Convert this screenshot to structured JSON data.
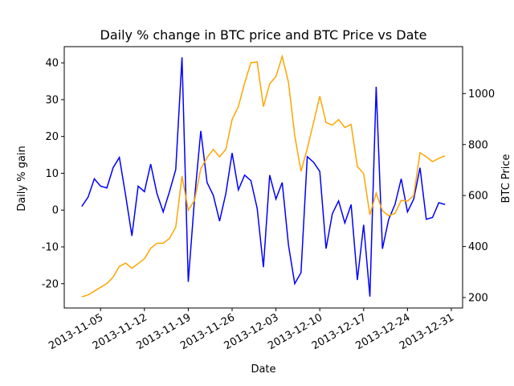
{
  "chart_data": {
    "type": "line",
    "title": "Daily % change in BTC price and BTC Price vs Date",
    "xlabel": "Date",
    "ylabel": "Daily % gain",
    "y2label": "BTC Price",
    "x": [
      "2013-11-02",
      "2013-11-03",
      "2013-11-04",
      "2013-11-05",
      "2013-11-06",
      "2013-11-07",
      "2013-11-08",
      "2013-11-09",
      "2013-11-10",
      "2013-11-11",
      "2013-11-12",
      "2013-11-13",
      "2013-11-14",
      "2013-11-15",
      "2013-11-16",
      "2013-11-17",
      "2013-11-18",
      "2013-11-19",
      "2013-11-20",
      "2013-11-21",
      "2013-11-22",
      "2013-11-23",
      "2013-11-24",
      "2013-11-25",
      "2013-11-26",
      "2013-11-27",
      "2013-11-28",
      "2013-11-29",
      "2013-11-30",
      "2013-12-01",
      "2013-12-02",
      "2013-12-03",
      "2013-12-04",
      "2013-12-05",
      "2013-12-06",
      "2013-12-07",
      "2013-12-08",
      "2013-12-09",
      "2013-12-10",
      "2013-12-11",
      "2013-12-12",
      "2013-12-13",
      "2013-12-14",
      "2013-12-15",
      "2013-12-16",
      "2013-12-17",
      "2013-12-18",
      "2013-12-19",
      "2013-12-20",
      "2013-12-21",
      "2013-12-22",
      "2013-12-23",
      "2013-12-24",
      "2013-12-25",
      "2013-12-26",
      "2013-12-27",
      "2013-12-28",
      "2013-12-29",
      "2013-12-30"
    ],
    "series": [
      {
        "color": "#0000ff",
        "axis": "y",
        "values": [
          1,
          3.5,
          8.5,
          6.5,
          6,
          11.5,
          14.3,
          4,
          -7,
          6.5,
          5,
          12.5,
          4.5,
          -0.5,
          5,
          11,
          41.5,
          -19.5,
          3,
          21.5,
          7.5,
          4,
          -3,
          4.5,
          15.5,
          5.5,
          9.5,
          8,
          0.5,
          -15.5,
          9.5,
          3,
          7.5,
          -9.5,
          -20,
          -17,
          14.5,
          13,
          10.5,
          -10.5,
          -1,
          2.5,
          -3.5,
          1.5,
          -19,
          -4,
          -23.5,
          33.5,
          -10.5,
          -2.5,
          1.5,
          8.5,
          -0.5,
          3,
          11.5,
          -2.5,
          -2,
          2,
          1.5
        ]
      },
      {
        "color": "#ffa500",
        "axis": "y2",
        "values": [
          203,
          210,
          225,
          240,
          255,
          280,
          322,
          335,
          315,
          333,
          352,
          393,
          413,
          413,
          432,
          476,
          676,
          543,
          581,
          705,
          749,
          781,
          752,
          781,
          898,
          949,
          1041,
          1121,
          1124,
          949,
          1038,
          1067,
          1146,
          1044,
          835,
          695,
          784,
          886,
          990,
          886,
          876,
          898,
          867,
          879,
          714,
          686,
          524,
          610,
          540,
          521,
          530,
          581,
          578,
          600,
          768,
          752,
          733,
          746,
          756
        ]
      }
    ],
    "xlim": [
      "2013-10-30T04:48:00Z",
      "2014-01-01T19:12:00Z"
    ],
    "xticks": [
      "2013-11-05",
      "2013-11-12",
      "2013-11-19",
      "2013-11-26",
      "2013-12-03",
      "2013-12-10",
      "2013-12-17",
      "2013-12-24",
      "2013-12-31"
    ],
    "ylim": [
      -26.6,
      44.4
    ],
    "yticks": [
      -20,
      -10,
      0,
      10,
      20,
      30,
      40
    ],
    "y2lim": [
      159,
      1184
    ],
    "y2ticks": [
      200,
      400,
      600,
      800,
      1000
    ]
  }
}
